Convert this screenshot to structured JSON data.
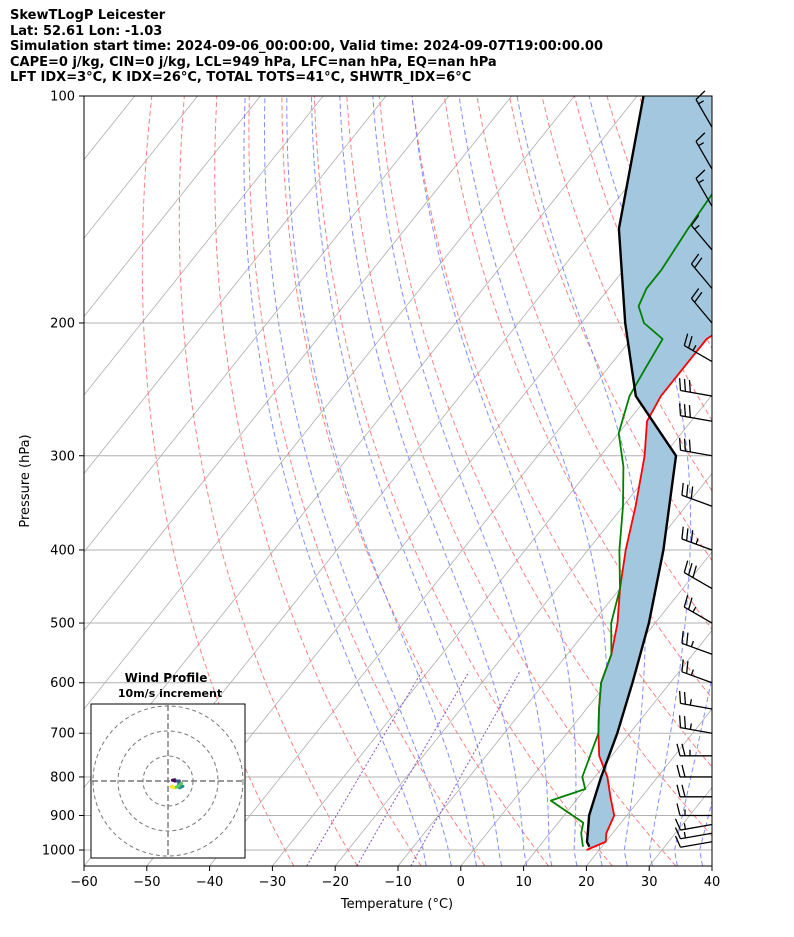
{
  "header": {
    "lines": [
      "SkewTLogP Leicester",
      "Lat: 52.61   Lon: -1.03",
      "Simulation start time: 2024-09-06_00:00:00, Valid time: 2024-09-07T19:00:00.00",
      "CAPE=0 j/kg, CIN=0 j/kg, LCL=949 hPa, LFC=nan hPa, EQ=nan hPa",
      "LFT IDX=3°C, K IDX=26°C, TOTAL TOTS=41°C, SHWTR_IDX=6°C"
    ]
  },
  "chart_data": {
    "type": "line",
    "title": "",
    "xlabel": "Temperature (°C)",
    "ylabel": "Pressure (hPa)",
    "xlim": [
      -60,
      40
    ],
    "ylim": [
      1050,
      100
    ],
    "y_scale": "log",
    "grid": true,
    "x_ticks": [
      "−60",
      "−50",
      "−40",
      "−30",
      "−20",
      "−10",
      "0",
      "10",
      "20",
      "30",
      "40"
    ],
    "y_ticks": [
      "1000",
      "900",
      "800",
      "700",
      "600",
      "500",
      "400",
      "300",
      "200",
      "100"
    ],
    "series": [
      {
        "role": "temperature",
        "color": "#ff0000",
        "points": [
          [
            18,
            1000
          ],
          [
            20,
            975
          ],
          [
            19,
            950
          ],
          [
            18,
            900
          ],
          [
            15,
            850
          ],
          [
            12,
            800
          ],
          [
            8,
            750
          ],
          [
            5,
            700
          ],
          [
            2,
            650
          ],
          [
            -1,
            600
          ],
          [
            -3,
            550
          ],
          [
            -6,
            500
          ],
          [
            -10,
            450
          ],
          [
            -14,
            400
          ],
          [
            -18,
            350
          ],
          [
            -23,
            300
          ],
          [
            -27,
            270
          ],
          [
            -28,
            250
          ],
          [
            -28,
            225
          ],
          [
            -28,
            210
          ],
          [
            -26,
            200
          ],
          [
            -24,
            185
          ],
          [
            -24,
            175
          ],
          [
            -24,
            160
          ],
          [
            -23,
            150
          ],
          [
            -28,
            125
          ],
          [
            -37,
            100
          ]
        ]
      },
      {
        "role": "dewpoint",
        "color": "#008000",
        "points": [
          [
            17,
            990
          ],
          [
            16,
            970
          ],
          [
            15,
            950
          ],
          [
            14,
            920
          ],
          [
            6,
            860
          ],
          [
            10,
            830
          ],
          [
            8,
            800
          ],
          [
            5,
            700
          ],
          [
            2,
            650
          ],
          [
            -1,
            600
          ],
          [
            -3,
            550
          ],
          [
            -7,
            500
          ],
          [
            -10,
            450
          ],
          [
            -15,
            400
          ],
          [
            -20,
            350
          ],
          [
            -25,
            310
          ],
          [
            -30,
            280
          ],
          [
            -33,
            250
          ],
          [
            -34,
            230
          ],
          [
            -35,
            210
          ],
          [
            -40,
            200
          ],
          [
            -43,
            190
          ],
          [
            -44,
            180
          ],
          [
            -44,
            170
          ],
          [
            -45,
            150
          ],
          [
            -46,
            125
          ],
          [
            -50,
            100
          ]
        ]
      },
      {
        "role": "parcel",
        "color": "#000000",
        "points": [
          [
            18,
            990
          ],
          [
            17,
            975
          ],
          [
            16,
            949
          ],
          [
            14,
            900
          ],
          [
            11,
            800
          ],
          [
            8,
            700
          ],
          [
            4,
            600
          ],
          [
            -1,
            500
          ],
          [
            -8,
            400
          ],
          [
            -18,
            300
          ],
          [
            -32,
            250
          ],
          [
            -43,
            200
          ],
          [
            -56,
            150
          ],
          [
            -69,
            100
          ]
        ]
      }
    ],
    "shaded_area": {
      "between": [
        "temperature",
        "parcel"
      ],
      "color": "#a4c7e0"
    },
    "background_lines": {
      "isotherms": "#999999",
      "dry_adiabats": "#ff6b6b",
      "moist_adiabats": "#6b7bff",
      "mixing_ratio": "#7b3fbf"
    },
    "wind_barbs": {
      "pressures": [
        975,
        950,
        925,
        900,
        850,
        800,
        750,
        700,
        650,
        600,
        550,
        500,
        450,
        400,
        350,
        300,
        270,
        250,
        225,
        200,
        180,
        160,
        140,
        125,
        110
      ],
      "speed_kt": [
        10,
        15,
        15,
        15,
        20,
        20,
        25,
        25,
        25,
        25,
        25,
        25,
        30,
        35,
        30,
        30,
        30,
        30,
        25,
        20,
        20,
        15,
        15,
        15,
        15
      ],
      "direction_deg": [
        260,
        260,
        260,
        270,
        270,
        270,
        270,
        280,
        280,
        290,
        290,
        300,
        300,
        290,
        290,
        280,
        280,
        280,
        300,
        320,
        320,
        320,
        330,
        330,
        330
      ]
    },
    "inset": {
      "title": "Wind Profile",
      "subtitle": "10m/s increment",
      "hodograph_colors": [
        "#440154",
        "#3b528b",
        "#21918c",
        "#5ec962",
        "#fde725"
      ]
    }
  }
}
